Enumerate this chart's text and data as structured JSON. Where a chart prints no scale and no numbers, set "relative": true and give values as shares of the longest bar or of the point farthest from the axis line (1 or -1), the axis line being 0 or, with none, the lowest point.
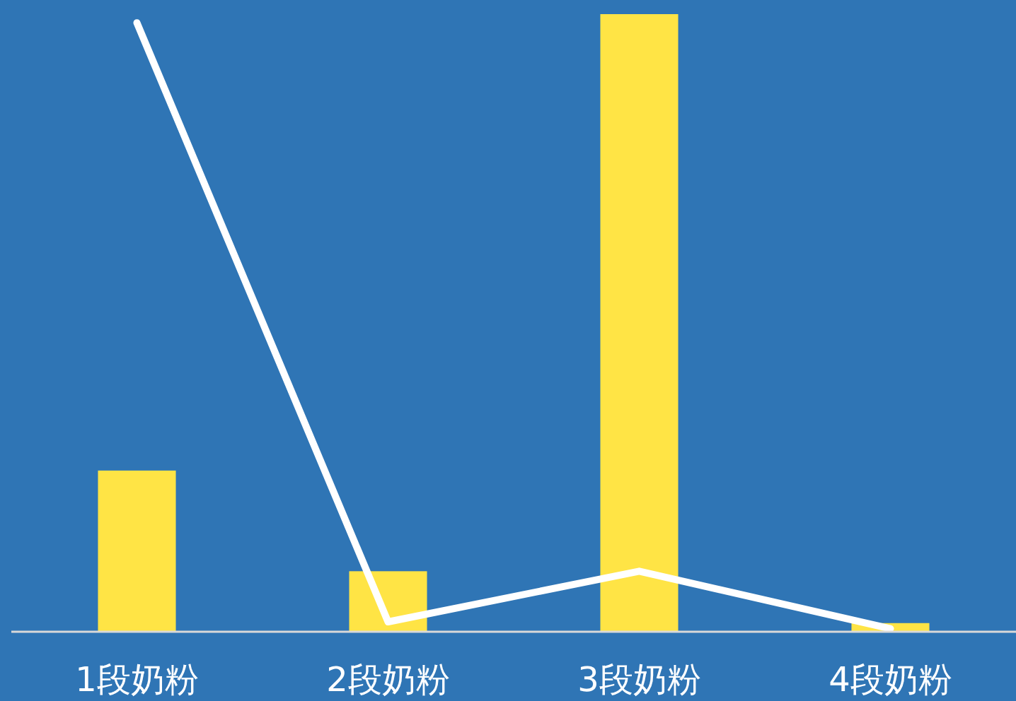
{
  "chart_data": {
    "type": "bar",
    "relative": true,
    "categories": [
      "1段奶粉",
      "2段奶粉",
      "3段奶粉",
      "4段奶粉"
    ],
    "series": [
      {
        "color": "#ffe445",
        "values": [
          0.261,
          0.098,
          1,
          0.014
        ]
      },
      {
        "type": "line",
        "color": "#ffffff",
        "values": [
          0.986,
          0.016,
          0.098,
          0.005
        ]
      }
    ]
  }
}
